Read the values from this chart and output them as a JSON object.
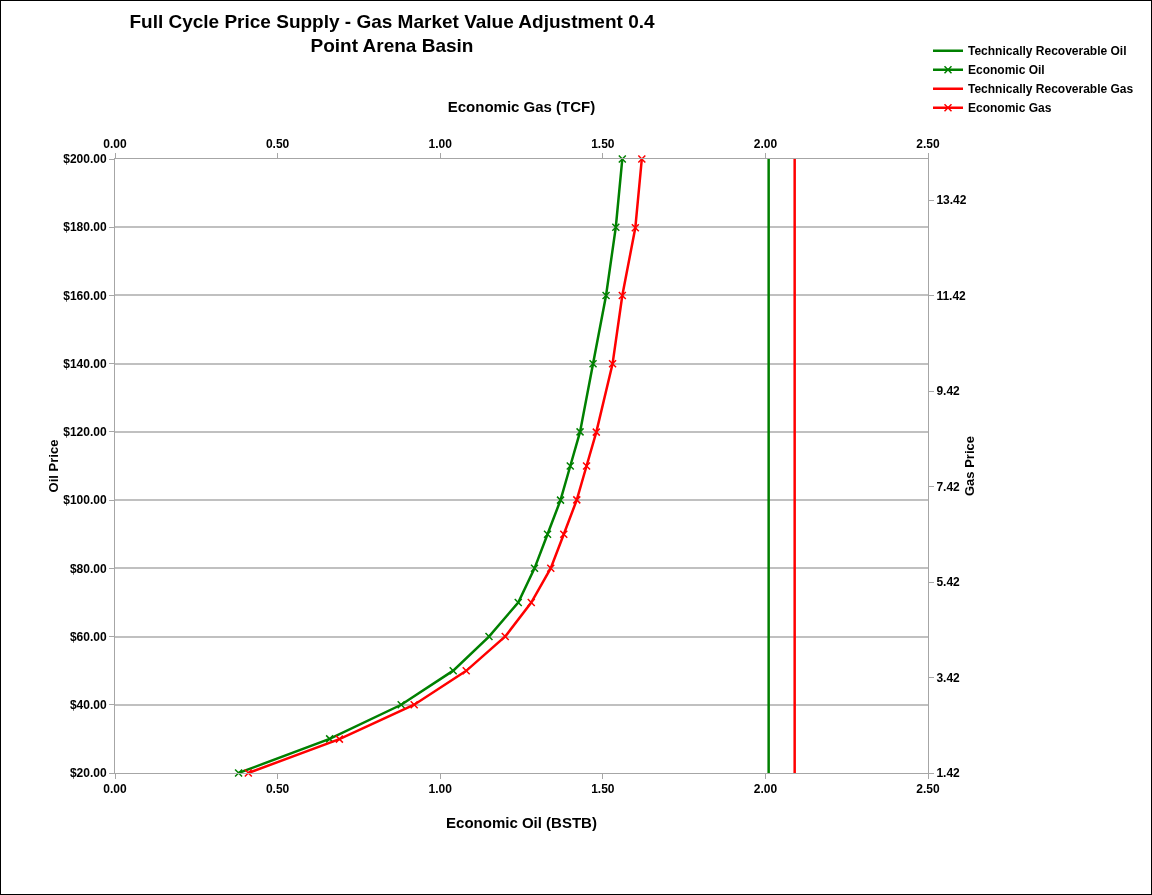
{
  "chart_data": {
    "type": "line",
    "title": "Full Cycle Price Supply - Gas Market Value Adjustment 0.4\nPoint Arena Basin",
    "xlabel": "Economic Oil (BSTB)",
    "ylabel": "Oil Price",
    "y2label": "Gas Price",
    "x2label": "Economic Gas (TCF)",
    "xlim": [
      0,
      2.5
    ],
    "xticks": [
      {
        "value": 0,
        "label": "0.00"
      },
      {
        "value": 0.5,
        "label": "0.50"
      },
      {
        "value": 1,
        "label": "1.00"
      },
      {
        "value": 1.5,
        "label": "1.50"
      },
      {
        "value": 2,
        "label": "2.00"
      },
      {
        "value": 2.5,
        "label": "2.50"
      }
    ],
    "x2lim": [
      0,
      2.5
    ],
    "x2ticks": [
      {
        "value": 0,
        "label": "0.00"
      },
      {
        "value": 0.5,
        "label": "0.50"
      },
      {
        "value": 1,
        "label": "1.00"
      },
      {
        "value": 1.5,
        "label": "1.50"
      },
      {
        "value": 2,
        "label": "2.00"
      },
      {
        "value": 2.5,
        "label": "2.50"
      }
    ],
    "ylim": [
      20,
      200
    ],
    "yticks": [
      {
        "value": 20,
        "label": "$20.00"
      },
      {
        "value": 40,
        "label": "$40.00"
      },
      {
        "value": 60,
        "label": "$60.00"
      },
      {
        "value": 80,
        "label": "$80.00"
      },
      {
        "value": 100,
        "label": "$100.00"
      },
      {
        "value": 120,
        "label": "$120.00"
      },
      {
        "value": 140,
        "label": "$140.00"
      },
      {
        "value": 160,
        "label": "$160.00"
      },
      {
        "value": 180,
        "label": "$180.00"
      },
      {
        "value": 200,
        "label": "$200.00"
      }
    ],
    "y2lim": [
      1.42,
      14.28
    ],
    "y2ticks": [
      1.42,
      3.42,
      5.42,
      7.42,
      9.42,
      11.42,
      13.42
    ],
    "grid": "y",
    "legend": "top right",
    "line_style": "solid",
    "series": [
      {
        "name": "Technically Recoverable Oil",
        "color": "#008000",
        "marker": "none",
        "x": [
          2.01,
          2.01
        ],
        "values": [
          20,
          200
        ]
      },
      {
        "name": "Economic Oil",
        "color": "#008000",
        "marker": "cross",
        "x": [
          0.38,
          0.66,
          0.88,
          1.04,
          1.15,
          1.24,
          1.29,
          1.33,
          1.37,
          1.4,
          1.43,
          1.47,
          1.51,
          1.54,
          1.56
        ],
        "values": [
          20,
          30,
          40,
          50,
          60,
          70,
          80,
          90,
          100,
          110,
          120,
          140,
          160,
          180,
          200
        ]
      },
      {
        "name": "Technically Recoverable Gas",
        "color": "#ff0000",
        "marker": "none",
        "axis": "y2",
        "x": [
          2.09,
          2.09
        ],
        "values": [
          1.42,
          14.28
        ]
      },
      {
        "name": "Economic Gas",
        "color": "#ff0000",
        "marker": "cross",
        "axis": "y2",
        "x": [
          0.41,
          0.69,
          0.92,
          1.08,
          1.2,
          1.28,
          1.34,
          1.38,
          1.42,
          1.45,
          1.48,
          1.53,
          1.56,
          1.6,
          1.62
        ],
        "values": [
          1.42,
          2.13,
          2.85,
          3.56,
          4.28,
          4.99,
          5.71,
          6.42,
          7.14,
          7.85,
          8.56,
          9.99,
          11.42,
          12.84,
          14.28
        ]
      }
    ]
  }
}
